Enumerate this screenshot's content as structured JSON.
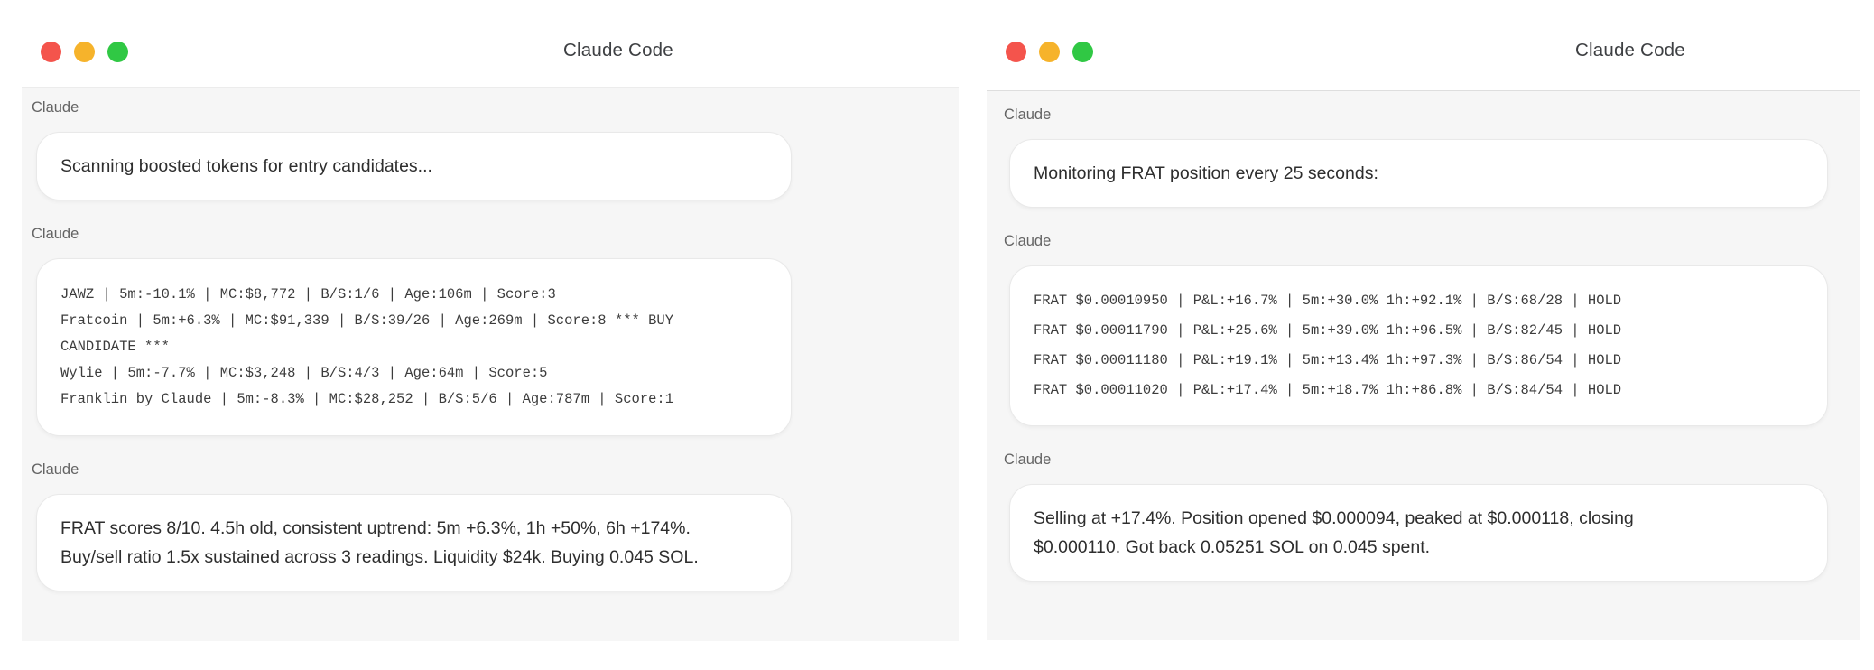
{
  "colors": {
    "content-bg": "#f6f6f6",
    "bubble-border": "#e9e9e9",
    "accent-blue": "#2670e8",
    "tab-line-blue": "#b7cdf8",
    "traffic-red": "#f4544c",
    "traffic-yellow": "#f6b32b",
    "traffic-green": "#30c844"
  },
  "windows": [
    {
      "id": "scanner",
      "title": "Claude Code",
      "messages": [
        {
          "sender": "Claude",
          "style": "plain",
          "lines": [
            "Scanning boosted tokens for entry candidates..."
          ]
        },
        {
          "sender": "Claude",
          "style": "mono",
          "lines": [
            "JAWZ | 5m:-10.1% | MC:$8,772 | B/S:1/6 | Age:106m | Score:3",
            "Fratcoin | 5m:+6.3% | MC:$91,339 | B/S:39/26 | Age:269m | Score:8 *** BUY",
            "CANDIDATE ***",
            "Wylie | 5m:-7.7% | MC:$3,248 | B/S:4/3 | Age:64m | Score:5",
            "Franklin by Claude | 5m:-8.3% | MC:$28,252 | B/S:5/6 | Age:787m | Score:1"
          ]
        },
        {
          "sender": "Claude",
          "style": "plain",
          "lines": [
            "FRAT scores 8/10. 4.5h old, consistent uptrend: 5m +6.3%, 1h +50%, 6h +174%.",
            "Buy/sell ratio 1.5x sustained across 3 readings. Liquidity $24k. Buying 0.045 SOL."
          ]
        }
      ]
    },
    {
      "id": "monitor",
      "title": "Claude Code",
      "messages": [
        {
          "sender": "Claude",
          "style": "plain",
          "lines": [
            "Monitoring FRAT position every 25 seconds:"
          ]
        },
        {
          "sender": "Claude",
          "style": "mono",
          "lines": [
            "FRAT $0.00010950 | P&L:+16.7% | 5m:+30.0% 1h:+92.1% | B/S:68/28 | HOLD",
            "FRAT $0.00011790 | P&L:+25.6% | 5m:+39.0% 1h:+96.5% | B/S:82/45 | HOLD",
            "FRAT $0.00011180 | P&L:+19.1% | 5m:+13.4% 1h:+97.3% | B/S:86/54 | HOLD",
            "FRAT $0.00011020 | P&L:+17.4% | 5m:+18.7% 1h:+86.8% | B/S:84/54 | HOLD"
          ]
        },
        {
          "sender": "Claude",
          "style": "plain",
          "lines": [
            "Selling at +17.4%. Position opened $0.000094, peaked at $0.000118, closing",
            "$0.000110. Got back 0.05251 SOL on 0.045 spent."
          ]
        }
      ]
    }
  ]
}
